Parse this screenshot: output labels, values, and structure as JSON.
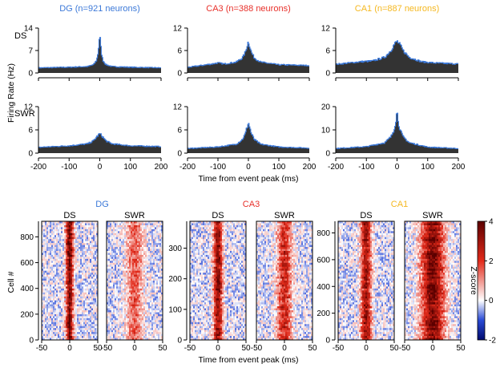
{
  "chart_data": [
    {
      "type": "line",
      "kind": "peri-event firing-rate histograms",
      "ylabel": "Firing Rate (Hz)",
      "xlabel": "Time from event peak (ms)",
      "xlim": [
        -200,
        200
      ],
      "xticks": [
        "-200",
        "-100",
        "0",
        "100",
        "200"
      ],
      "columns": [
        {
          "title": "DG (n=921 neurons)",
          "color": "#3b78d8"
        },
        {
          "title": "CA3 (n=388 neurons)",
          "color": "#e8302a"
        },
        {
          "title": "CA1 (n=887 neurons)",
          "color": "#f5b820"
        }
      ],
      "rows": [
        "DS",
        "SWR"
      ],
      "fill_color": "#333333",
      "line_color": "#3b78d8",
      "panels": [
        {
          "row": "DS",
          "column": "DG",
          "ylim": [
            0,
            14
          ],
          "yticks": [
            "0",
            "7",
            "14"
          ],
          "x": [
            -200,
            -100,
            -40,
            -20,
            -10,
            -5,
            0,
            5,
            10,
            20,
            40,
            100,
            200
          ],
          "y": [
            1.6,
            1.8,
            2.0,
            2.6,
            4.0,
            6.5,
            12.0,
            6.5,
            4.0,
            2.6,
            2.0,
            1.8,
            1.6
          ]
        },
        {
          "row": "DS",
          "column": "CA3",
          "ylim": [
            0,
            12
          ],
          "yticks": [
            "0",
            "6",
            "12"
          ],
          "x": [
            -200,
            -120,
            -100,
            -80,
            -40,
            -20,
            -10,
            0,
            10,
            20,
            40,
            100,
            200
          ],
          "y": [
            1.5,
            2.4,
            2.7,
            2.4,
            2.9,
            4.0,
            5.5,
            8.5,
            5.5,
            4.0,
            2.9,
            2.2,
            2.0
          ]
        },
        {
          "row": "DS",
          "column": "CA1",
          "ylim": [
            0,
            12
          ],
          "yticks": [
            "0",
            "6",
            "12"
          ],
          "x": [
            -200,
            -120,
            -80,
            -40,
            -20,
            -10,
            0,
            10,
            20,
            40,
            80,
            120,
            200
          ],
          "y": [
            2.3,
            3.0,
            3.2,
            4.2,
            6.0,
            7.5,
            8.5,
            7.5,
            6.0,
            4.2,
            3.0,
            2.7,
            2.4
          ]
        },
        {
          "row": "SWR",
          "column": "DG",
          "ylim": [
            0,
            12
          ],
          "yticks": [
            "0",
            "6",
            "12"
          ],
          "x": [
            -200,
            -100,
            -40,
            -20,
            -10,
            0,
            10,
            20,
            40,
            100,
            200
          ],
          "y": [
            1.5,
            1.9,
            2.4,
            3.2,
            4.2,
            5.0,
            4.2,
            3.2,
            2.4,
            1.9,
            1.7
          ]
        },
        {
          "row": "SWR",
          "column": "CA3",
          "ylim": [
            0,
            12
          ],
          "yticks": [
            "0",
            "6",
            "12"
          ],
          "x": [
            -200,
            -100,
            -40,
            -20,
            -10,
            0,
            10,
            20,
            40,
            100,
            200
          ],
          "y": [
            1.2,
            1.6,
            2.3,
            3.5,
            5.0,
            8.0,
            5.0,
            3.5,
            2.3,
            1.6,
            1.3
          ]
        },
        {
          "row": "SWR",
          "column": "CA1",
          "ylim": [
            0,
            20
          ],
          "yticks": [
            "0",
            "10",
            "20"
          ],
          "x": [
            -200,
            -100,
            -40,
            -20,
            -10,
            -5,
            0,
            5,
            10,
            20,
            40,
            100,
            200
          ],
          "y": [
            2.0,
            2.8,
            4.5,
            7.0,
            10.0,
            13.0,
            18.0,
            13.0,
            10.0,
            7.0,
            4.5,
            2.6,
            2.0
          ]
        }
      ]
    },
    {
      "type": "heatmap",
      "kind": "per-cell z-scored peri-event rasters",
      "xlabel": "Time from event peak (ms)",
      "ylabel": "Cell #",
      "xlim": [
        -50,
        50
      ],
      "xticks": [
        "-50",
        "0",
        "50"
      ],
      "panel_labels": [
        "DS",
        "SWR"
      ],
      "groups": [
        {
          "name": "DG",
          "color": "#3b78d8",
          "ylim": [
            0,
            921
          ],
          "yticks": [
            "0",
            "200",
            "400",
            "600",
            "800"
          ],
          "panels": [
            {
              "label": "DS",
              "peak": 4.0,
              "width_ms": 4.5
            },
            {
              "label": "SWR",
              "peak": 1.8,
              "width_ms": 10
            }
          ]
        },
        {
          "name": "CA3",
          "color": "#e8302a",
          "ylim": [
            0,
            388
          ],
          "yticks": [
            "0",
            "100",
            "200",
            "300"
          ],
          "panels": [
            {
              "label": "DS",
              "peak": 3.6,
              "width_ms": 5.5
            },
            {
              "label": "SWR",
              "peak": 2.6,
              "width_ms": 9
            }
          ]
        },
        {
          "name": "CA1",
          "color": "#f5b820",
          "ylim": [
            0,
            887
          ],
          "yticks": [
            "0",
            "200",
            "400",
            "600",
            "800"
          ],
          "panels": [
            {
              "label": "DS",
              "peak": 3.4,
              "width_ms": 6.5
            },
            {
              "label": "SWR",
              "peak": 4.0,
              "width_ms": 14
            }
          ]
        }
      ],
      "colorbar": {
        "label": "Z-score",
        "range": [
          -2,
          4
        ],
        "ticks": [
          "4",
          "2",
          "0",
          "-2"
        ],
        "colormap": [
          "#000a6e",
          "#2a4bd6",
          "#ffffff",
          "#e22a1a",
          "#5c0000"
        ]
      }
    }
  ]
}
